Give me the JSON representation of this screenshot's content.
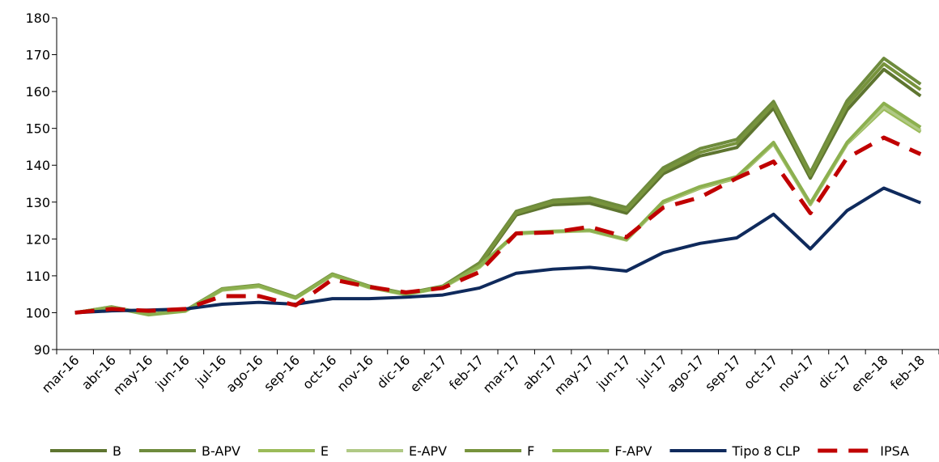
{
  "chart_data": {
    "type": "line",
    "categories": [
      "mar-16",
      "abr-16",
      "may-16",
      "jun-16",
      "jul-16",
      "ago-16",
      "sep-16",
      "oct-16",
      "nov-16",
      "dic-16",
      "ene-17",
      "feb-17",
      "mar-17",
      "abr-17",
      "may-17",
      "jun-17",
      "jul-17",
      "ago-17",
      "sep-17",
      "oct-17",
      "nov-17",
      "dic-17",
      "ene-18",
      "feb-18"
    ],
    "ylim": [
      90,
      180
    ],
    "yticks": [
      90,
      100,
      110,
      120,
      130,
      140,
      150,
      160,
      170,
      180
    ],
    "series": [
      {
        "name": "B",
        "color": "#5e7530",
        "values": [
          100,
          101.5,
          99.5,
          100.5,
          106.3,
          107.3,
          104,
          110.3,
          107,
          105,
          107,
          112.5,
          126.5,
          129.3,
          129.7,
          127,
          137.7,
          142.5,
          144.8,
          155.5,
          136.5,
          155,
          166,
          158.8
        ]
      },
      {
        "name": "B-APV",
        "color": "#6e8b3d",
        "values": [
          100,
          101.6,
          99.6,
          100.6,
          106.5,
          107.5,
          104.2,
          110.5,
          107.2,
          105.2,
          107.2,
          113.5,
          127.5,
          130.5,
          131.2,
          128.5,
          139.3,
          144.5,
          147,
          157.3,
          138,
          157.5,
          169,
          162
        ]
      },
      {
        "name": "E",
        "color": "#9bbb59",
        "values": [
          100,
          101.4,
          99.4,
          100.4,
          106.1,
          107.1,
          103.9,
          110.1,
          106.8,
          104.9,
          106.8,
          112.3,
          121.4,
          121.9,
          122.2,
          119.7,
          129.8,
          133.8,
          136.5,
          145.8,
          129.3,
          145.8,
          155.3,
          149
        ]
      },
      {
        "name": "E-APV",
        "color": "#b0c985",
        "values": [
          100,
          101.5,
          99.5,
          100.5,
          106.2,
          107.2,
          104,
          110.2,
          106.9,
          105,
          106.9,
          112.5,
          121.5,
          122,
          122.3,
          119.8,
          130,
          134,
          136.7,
          146,
          129.5,
          146,
          155.8,
          149.5
        ]
      },
      {
        "name": "F",
        "color": "#77933c",
        "values": [
          100,
          101.5,
          99.5,
          100.5,
          106.4,
          107.4,
          104.1,
          110.4,
          107.1,
          105.1,
          107.1,
          113,
          127,
          130,
          130.5,
          127.8,
          138.5,
          143.5,
          146,
          156.5,
          137.3,
          156.3,
          167.5,
          160.5
        ]
      },
      {
        "name": "F-APV",
        "color": "#8cb04f",
        "values": [
          100,
          101.5,
          99.5,
          100.5,
          106.3,
          107.3,
          104,
          110.3,
          107,
          105,
          107,
          112.6,
          121.6,
          122.1,
          122.4,
          119.9,
          130.2,
          134.2,
          136.9,
          146.2,
          129.7,
          146.2,
          156.8,
          150.3
        ]
      },
      {
        "name": "Tipo 8 CLP",
        "color": "#0f2a5c",
        "values": [
          100,
          100.5,
          100.7,
          101,
          102.3,
          102.8,
          102.3,
          103.8,
          103.8,
          104.2,
          104.8,
          106.7,
          110.7,
          111.8,
          112.3,
          111.3,
          116.3,
          118.8,
          120.3,
          126.7,
          117.3,
          127.7,
          133.8,
          129.8
        ]
      },
      {
        "name": "IPSA",
        "color": "#c00000",
        "dashed": true,
        "values": [
          100,
          101,
          100.5,
          101,
          104.5,
          104.5,
          102,
          109,
          107,
          105.5,
          106.7,
          111,
          121.5,
          121.8,
          123.3,
          120.5,
          128.5,
          131.3,
          136.5,
          141,
          127,
          142,
          147.5,
          143
        ]
      }
    ]
  }
}
